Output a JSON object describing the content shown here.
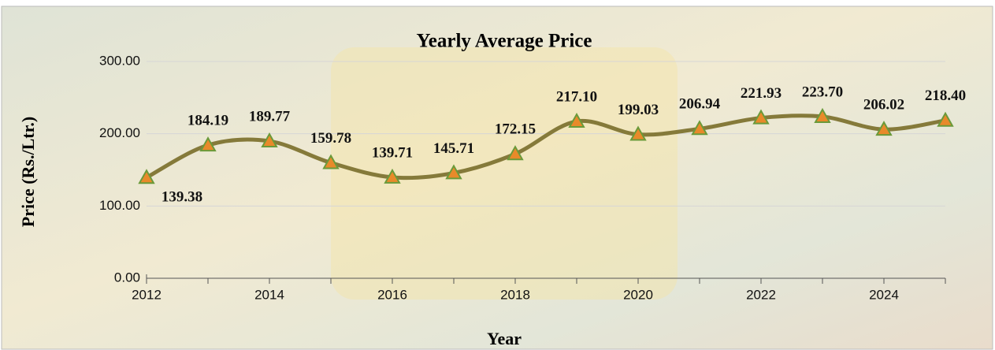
{
  "chart_data": {
    "type": "line",
    "title": "Yearly Average Price",
    "xlabel": "Year",
    "ylabel": "Price (Rs./Ltr.)",
    "x": [
      2012,
      2013,
      2014,
      2015,
      2016,
      2017,
      2018,
      2019,
      2020,
      2021,
      2022,
      2023,
      2024,
      2025
    ],
    "series": [
      {
        "name": "Yearly Average Price",
        "color": "#857a3a",
        "values": [
          139.38,
          184.19,
          189.77,
          159.78,
          139.71,
          145.71,
          172.15,
          217.1,
          199.03,
          206.94,
          221.93,
          223.7,
          206.02,
          218.4
        ],
        "value_labels": [
          "139.38",
          "184.19",
          "189.77",
          "159.78",
          "139.71",
          "145.71",
          "172.15",
          "217.10",
          "199.03",
          "206.94",
          "221.93",
          "223.70",
          "206.02",
          "218.40"
        ]
      }
    ],
    "xlim": [
      2012,
      2025
    ],
    "xticks": [
      2012,
      2014,
      2016,
      2018,
      2020,
      2022,
      2024
    ],
    "ylim": [
      0,
      300
    ],
    "yticks": [
      {
        "value": 0,
        "label": "0.00"
      },
      {
        "value": 100,
        "label": "100.00"
      },
      {
        "value": 200,
        "label": "200.00"
      },
      {
        "value": 300,
        "label": "300.00"
      }
    ],
    "grid": true
  }
}
